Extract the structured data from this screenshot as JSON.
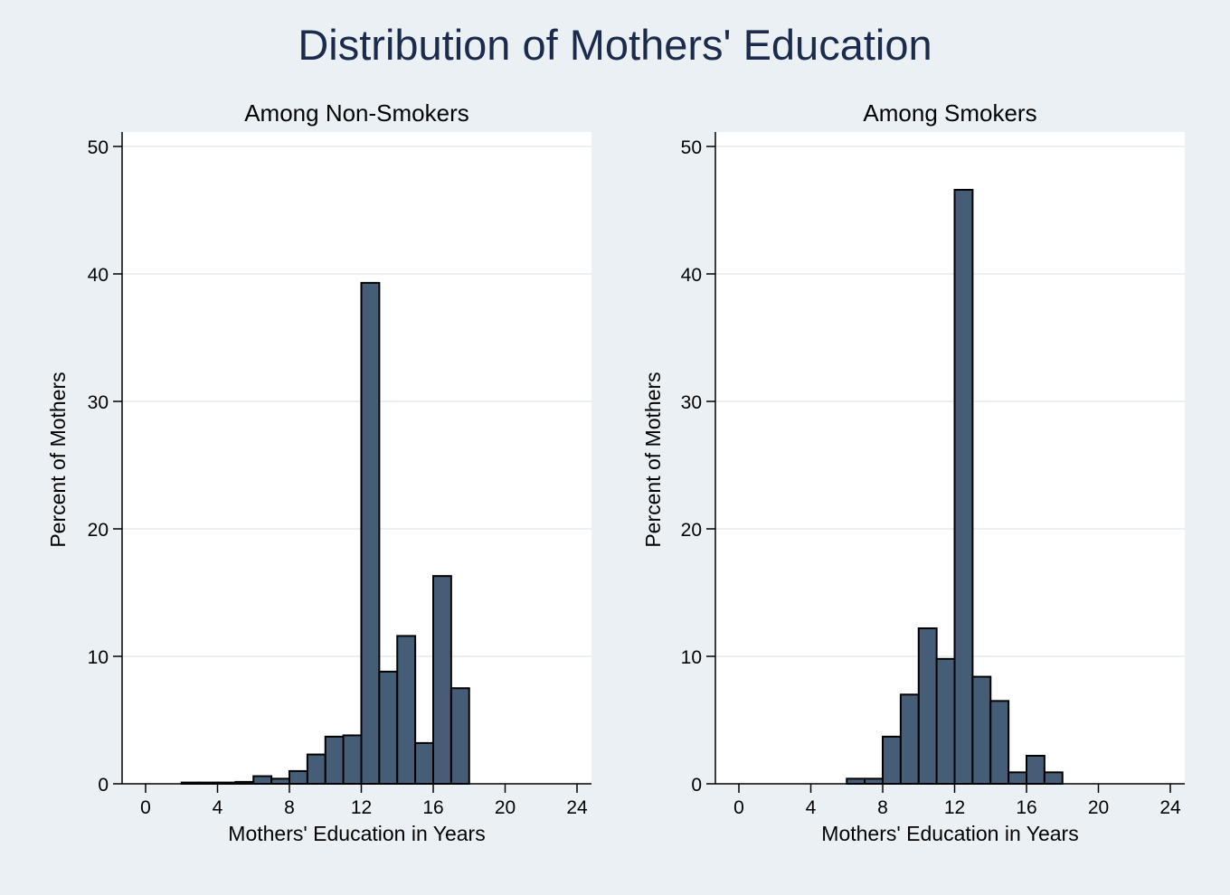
{
  "figure": {
    "title": "Distribution of Mothers' Education"
  },
  "colors": {
    "background": "#eaf0f4",
    "plot_area": "#ffffff",
    "bar_fill": "#465d77",
    "bar_stroke": "#000000",
    "grid": "#e6e9ec",
    "title": "#1c2a4c"
  },
  "chart_data": [
    {
      "type": "bar",
      "title": "Among Non-Smokers",
      "xlabel": "Mothers' Education in Years",
      "ylabel": "Percent of Mothers",
      "xlim": [
        -1.5,
        25
      ],
      "ylim": [
        0,
        50
      ],
      "xticks": [
        0,
        4,
        8,
        12,
        16,
        20,
        24
      ],
      "yticks": [
        0,
        10,
        20,
        30,
        40,
        50
      ],
      "grid": true,
      "bin_width": 1,
      "bins": [
        {
          "start": 2,
          "value": 0.1
        },
        {
          "start": 3,
          "value": 0.1
        },
        {
          "start": 4,
          "value": 0.1
        },
        {
          "start": 5,
          "value": 0.15
        },
        {
          "start": 6,
          "value": 0.6
        },
        {
          "start": 7,
          "value": 0.4
        },
        {
          "start": 8,
          "value": 1.0
        },
        {
          "start": 9,
          "value": 2.3
        },
        {
          "start": 10,
          "value": 3.7
        },
        {
          "start": 11,
          "value": 3.8
        },
        {
          "start": 12,
          "value": 39.3
        },
        {
          "start": 13,
          "value": 8.8
        },
        {
          "start": 14,
          "value": 11.6
        },
        {
          "start": 15,
          "value": 3.2
        },
        {
          "start": 16,
          "value": 16.3
        },
        {
          "start": 17,
          "value": 7.5
        }
      ]
    },
    {
      "type": "bar",
      "title": "Among Smokers",
      "xlabel": "Mothers' Education in Years",
      "ylabel": "Percent of Mothers",
      "xlim": [
        -1.5,
        25
      ],
      "ylim": [
        0,
        50
      ],
      "xticks": [
        0,
        4,
        8,
        12,
        16,
        20,
        24
      ],
      "yticks": [
        0,
        10,
        20,
        30,
        40,
        50
      ],
      "grid": true,
      "bin_width": 1,
      "bins": [
        {
          "start": 6,
          "value": 0.4
        },
        {
          "start": 7,
          "value": 0.4
        },
        {
          "start": 8,
          "value": 3.7
        },
        {
          "start": 9,
          "value": 7.0
        },
        {
          "start": 10,
          "value": 12.2
        },
        {
          "start": 11,
          "value": 9.8
        },
        {
          "start": 12,
          "value": 46.6
        },
        {
          "start": 13,
          "value": 8.4
        },
        {
          "start": 14,
          "value": 6.5
        },
        {
          "start": 15,
          "value": 0.9
        },
        {
          "start": 16,
          "value": 2.2
        },
        {
          "start": 17,
          "value": 0.9
        }
      ]
    }
  ]
}
